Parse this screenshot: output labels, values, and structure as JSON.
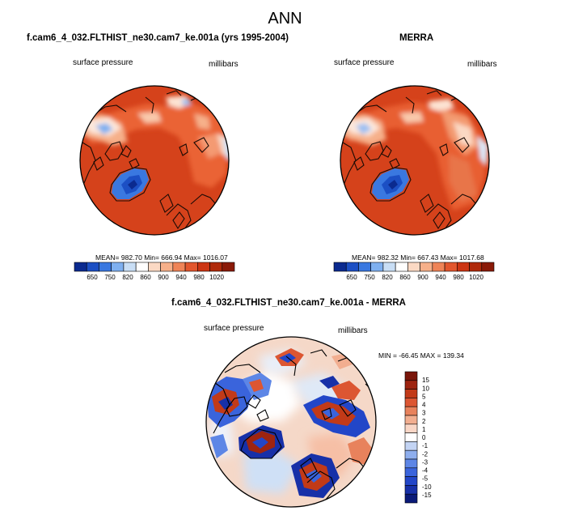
{
  "page_title": "ANN",
  "colors": {
    "cbar_abs": [
      "#0b2a8f",
      "#1c4fc4",
      "#3a78e0",
      "#7fb0f0",
      "#c9def5",
      "#ffffff",
      "#fbd9c4",
      "#f6b08a",
      "#ef8457",
      "#e2562d",
      "#cc3513",
      "#b02a0a",
      "#8a1a08"
    ],
    "cbar_diff": [
      "#0a1a78",
      "#1730a8",
      "#2246c8",
      "#3a64dc",
      "#5d86e6",
      "#8eaeee",
      "#c3d4f4",
      "#ffffff",
      "#f9d6c6",
      "#f2ae90",
      "#e8825c",
      "#dc5632",
      "#c23a18",
      "#9e2410",
      "#7a160a"
    ],
    "ocean_base": "#d5421b",
    "diff_base": "#f5d8c8"
  },
  "chart_data": [
    {
      "type": "heatmap",
      "projection": "polar-stereographic-north",
      "title": "f.cam6_4_032.FLTHIST_ne30.cam7_ke.001a (yrs 1995-2004)",
      "left_label": "surface pressure",
      "right_label": "millibars",
      "stats": {
        "mean": "982.70",
        "min": "666.94",
        "max": "1016.07",
        "text": "MEAN= 982.70  Min= 666.94  Max= 1016.07"
      },
      "colorbar_labels": [
        "650",
        "750",
        "820",
        "860",
        "900",
        "940",
        "980",
        "1020"
      ]
    },
    {
      "type": "heatmap",
      "projection": "polar-stereographic-north",
      "title": "MERRA",
      "left_label": "surface pressure",
      "right_label": "millibars",
      "stats": {
        "mean": "982.32",
        "min": "667.43",
        "max": "1017.68",
        "text": "MEAN= 982.32  Min= 667.43  Max= 1017.68"
      },
      "colorbar_labels": [
        "650",
        "750",
        "820",
        "860",
        "900",
        "940",
        "980",
        "1020"
      ]
    },
    {
      "type": "heatmap",
      "projection": "polar-stereographic-north",
      "title": "f.cam6_4_032.FLTHIST_ne30.cam7_ke.001a - MERRA",
      "left_label": "surface pressure",
      "right_label": "millibars",
      "stats": {
        "min": "-66.45",
        "max": "139.34",
        "text": "MIN = -66.45 MAX = 139.34"
      },
      "colorbar_labels": [
        "15",
        "10",
        "5",
        "4",
        "3",
        "2",
        "1",
        "0",
        "-1",
        "-2",
        "-3",
        "-4",
        "-5",
        "-10",
        "-15"
      ]
    }
  ]
}
